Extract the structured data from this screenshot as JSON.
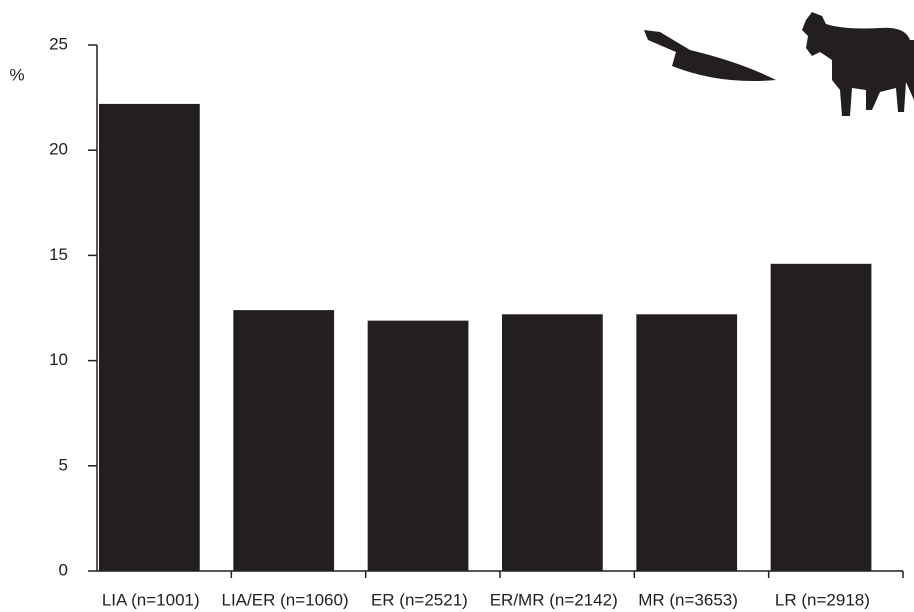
{
  "chart_data": {
    "type": "bar",
    "y_label": "%",
    "categories": [
      "LIA (n=1001)",
      "LIA/ER (n=1060)",
      "ER (n=2521)",
      "ER/MR (n=2142)",
      "MR (n=3653)",
      "LR (n=2918)"
    ],
    "values": [
      22.2,
      12.4,
      11.9,
      12.2,
      12.2,
      14.6
    ],
    "color": "#231f20",
    "ylim": [
      0,
      25
    ],
    "yticks": [
      0,
      5,
      10,
      15,
      20,
      25
    ],
    "grid": false
  }
}
